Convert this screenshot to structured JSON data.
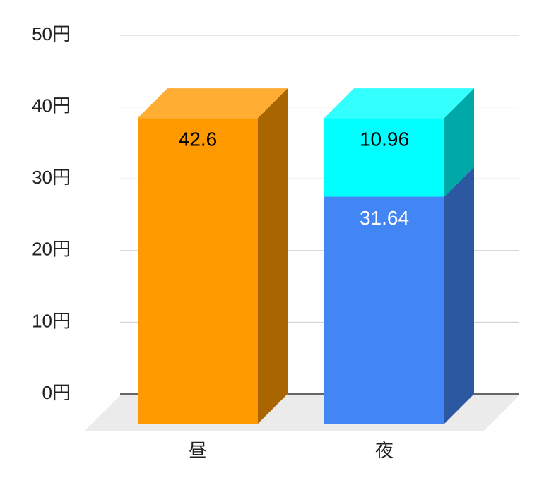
{
  "chart_data": {
    "type": "bar3d",
    "stacked": true,
    "categories": [
      "昼",
      "夜"
    ],
    "series": [
      {
        "color": "#ff9900",
        "values": [
          42.6,
          null
        ]
      },
      {
        "color": "#4285f4",
        "values": [
          null,
          31.64
        ]
      },
      {
        "color": "#00ffff",
        "values": [
          null,
          10.96
        ]
      }
    ],
    "ylim": [
      0,
      50
    ],
    "yticks": [
      {
        "value": 0,
        "label": "0円"
      },
      {
        "value": 10,
        "label": "10円"
      },
      {
        "value": 20,
        "label": "20円"
      },
      {
        "value": 30,
        "label": "30円"
      },
      {
        "value": 40,
        "label": "40円"
      },
      {
        "value": 50,
        "label": "50円"
      }
    ],
    "grid": true
  }
}
